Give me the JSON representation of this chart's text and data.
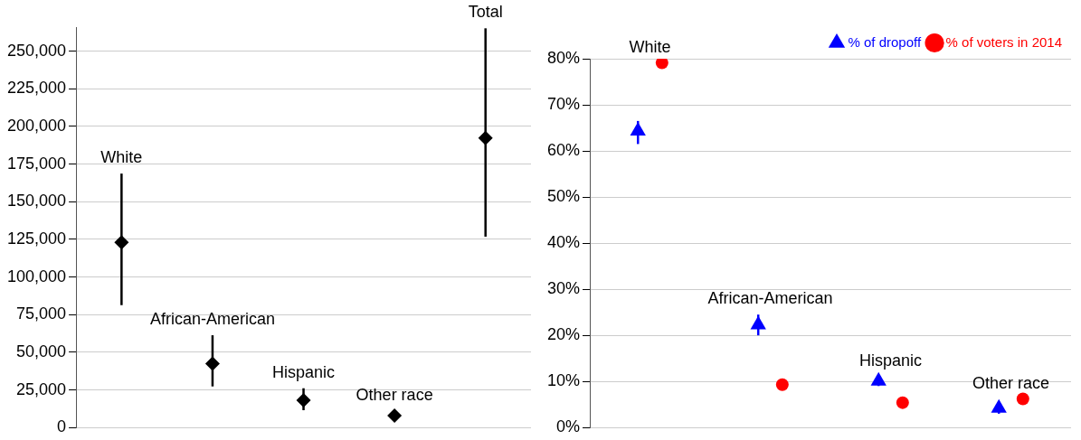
{
  "chart_data": [
    {
      "type": "scatter",
      "categories": [
        "White",
        "African-American",
        "Hispanic",
        "Other race",
        "Total"
      ],
      "tick_labels": "y",
      "marker": "diamond",
      "grid": "y",
      "color": "#000000",
      "values": [
        123000,
        42500,
        18200,
        7900,
        192400
      ],
      "errors": [
        [
          81300,
          168700
        ],
        [
          27300,
          61300
        ],
        [
          11500,
          26100
        ],
        [
          5000,
          11000
        ],
        [
          126800,
          265200
        ]
      ],
      "ylim": [
        0,
        266000
      ],
      "yticks": [
        {
          "value": 0,
          "label": "0"
        },
        {
          "value": 25000,
          "label": "25,000"
        },
        {
          "value": 50000,
          "label": "50,000"
        },
        {
          "value": 75000,
          "label": "75,000"
        },
        {
          "value": 100000,
          "label": "100,000"
        },
        {
          "value": 125000,
          "label": "125,000"
        },
        {
          "value": 150000,
          "label": "150,000"
        },
        {
          "value": 175000,
          "label": "175,000"
        },
        {
          "value": 200000,
          "label": "200,000"
        },
        {
          "value": 225000,
          "label": "225,000"
        },
        {
          "value": 250000,
          "label": "250,000"
        }
      ]
    },
    {
      "type": "scatter",
      "categories": [
        "White",
        "African-American",
        "Hispanic",
        "Other race"
      ],
      "tick_labels": "y",
      "grid": "y",
      "legend": "top right",
      "series": [
        {
          "name": "% of dropoff",
          "color": "#0000ff",
          "marker": "triangle",
          "values": [
            64.3,
            22.3,
            10.1,
            4.2
          ],
          "errors": [
            [
              61.5,
              66.5
            ],
            [
              20,
              24.5
            ],
            [
              9,
              11
            ],
            [
              3,
              5
            ]
          ]
        },
        {
          "name": "% of voters in 2014",
          "color": "#ff0000",
          "marker": "circle",
          "values": [
            79.1,
            9.3,
            5.4,
            6.2
          ]
        }
      ],
      "ylim": [
        0,
        80
      ],
      "yticks": [
        {
          "value": 0,
          "label": "0%"
        },
        {
          "value": 10,
          "label": "10%"
        },
        {
          "value": 20,
          "label": "20%"
        },
        {
          "value": 30,
          "label": "30%"
        },
        {
          "value": 40,
          "label": "40%"
        },
        {
          "value": 50,
          "label": "50%"
        },
        {
          "value": 60,
          "label": "60%"
        },
        {
          "value": 70,
          "label": "70%"
        },
        {
          "value": 80,
          "label": "80%"
        }
      ]
    }
  ]
}
